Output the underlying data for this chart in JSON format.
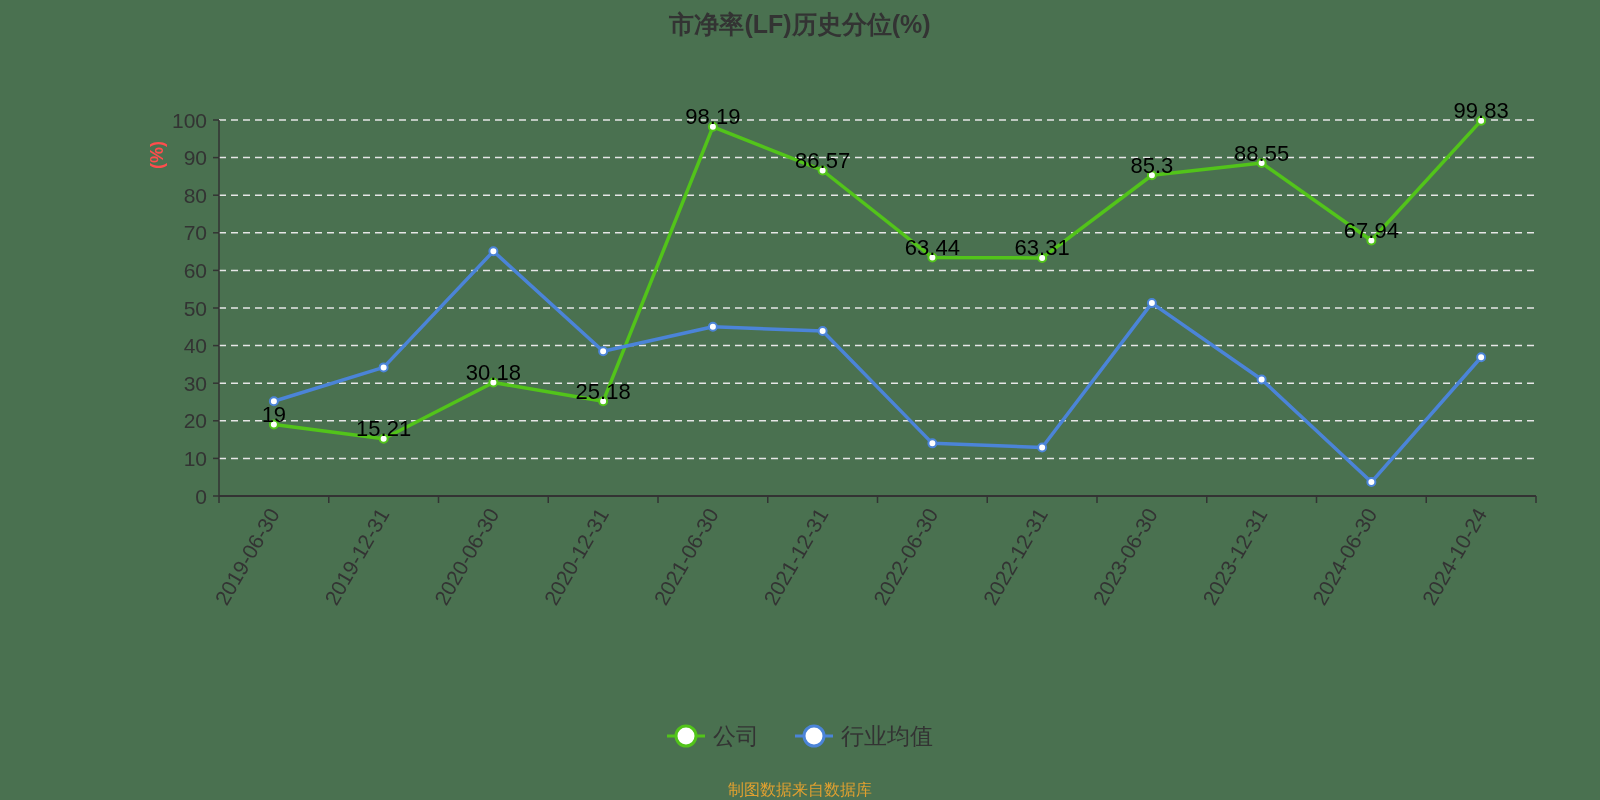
{
  "chart_data": {
    "type": "line",
    "title": "市净率(LF)历史分位(%)",
    "ylabel": "(%)",
    "categories": [
      "2019-06-30",
      "2019-12-31",
      "2020-06-30",
      "2020-12-31",
      "2021-06-30",
      "2021-12-31",
      "2022-06-30",
      "2022-12-31",
      "2023-06-30",
      "2023-12-31",
      "2024-06-30",
      "2024-10-24"
    ],
    "series": [
      {
        "name": "公司",
        "color": "#52c41a",
        "values": [
          19,
          15.21,
          30.18,
          25.18,
          98.19,
          86.57,
          63.44,
          63.31,
          85.3,
          88.55,
          67.94,
          99.83
        ],
        "value_labels": [
          "19",
          "15.21",
          "30.18",
          "25.18",
          "98.19",
          "86.57",
          "63.44",
          "63.31",
          "85.3",
          "88.55",
          "67.94",
          "99.83"
        ]
      },
      {
        "name": "行业均值",
        "color": "#4b84d8",
        "values": [
          25.2,
          34.2,
          65.1,
          38.5,
          45.0,
          43.9,
          14.0,
          12.9,
          51.3,
          31.0,
          3.7,
          36.9
        ]
      }
    ],
    "ylim": [
      0,
      100
    ],
    "yticks": [
      0,
      10,
      20,
      30,
      40,
      50,
      60,
      70,
      80,
      90,
      100
    ],
    "grid": "y",
    "legend": "bottom",
    "marker": "circle",
    "annotations": [
      "制图数据来自数据库"
    ]
  }
}
